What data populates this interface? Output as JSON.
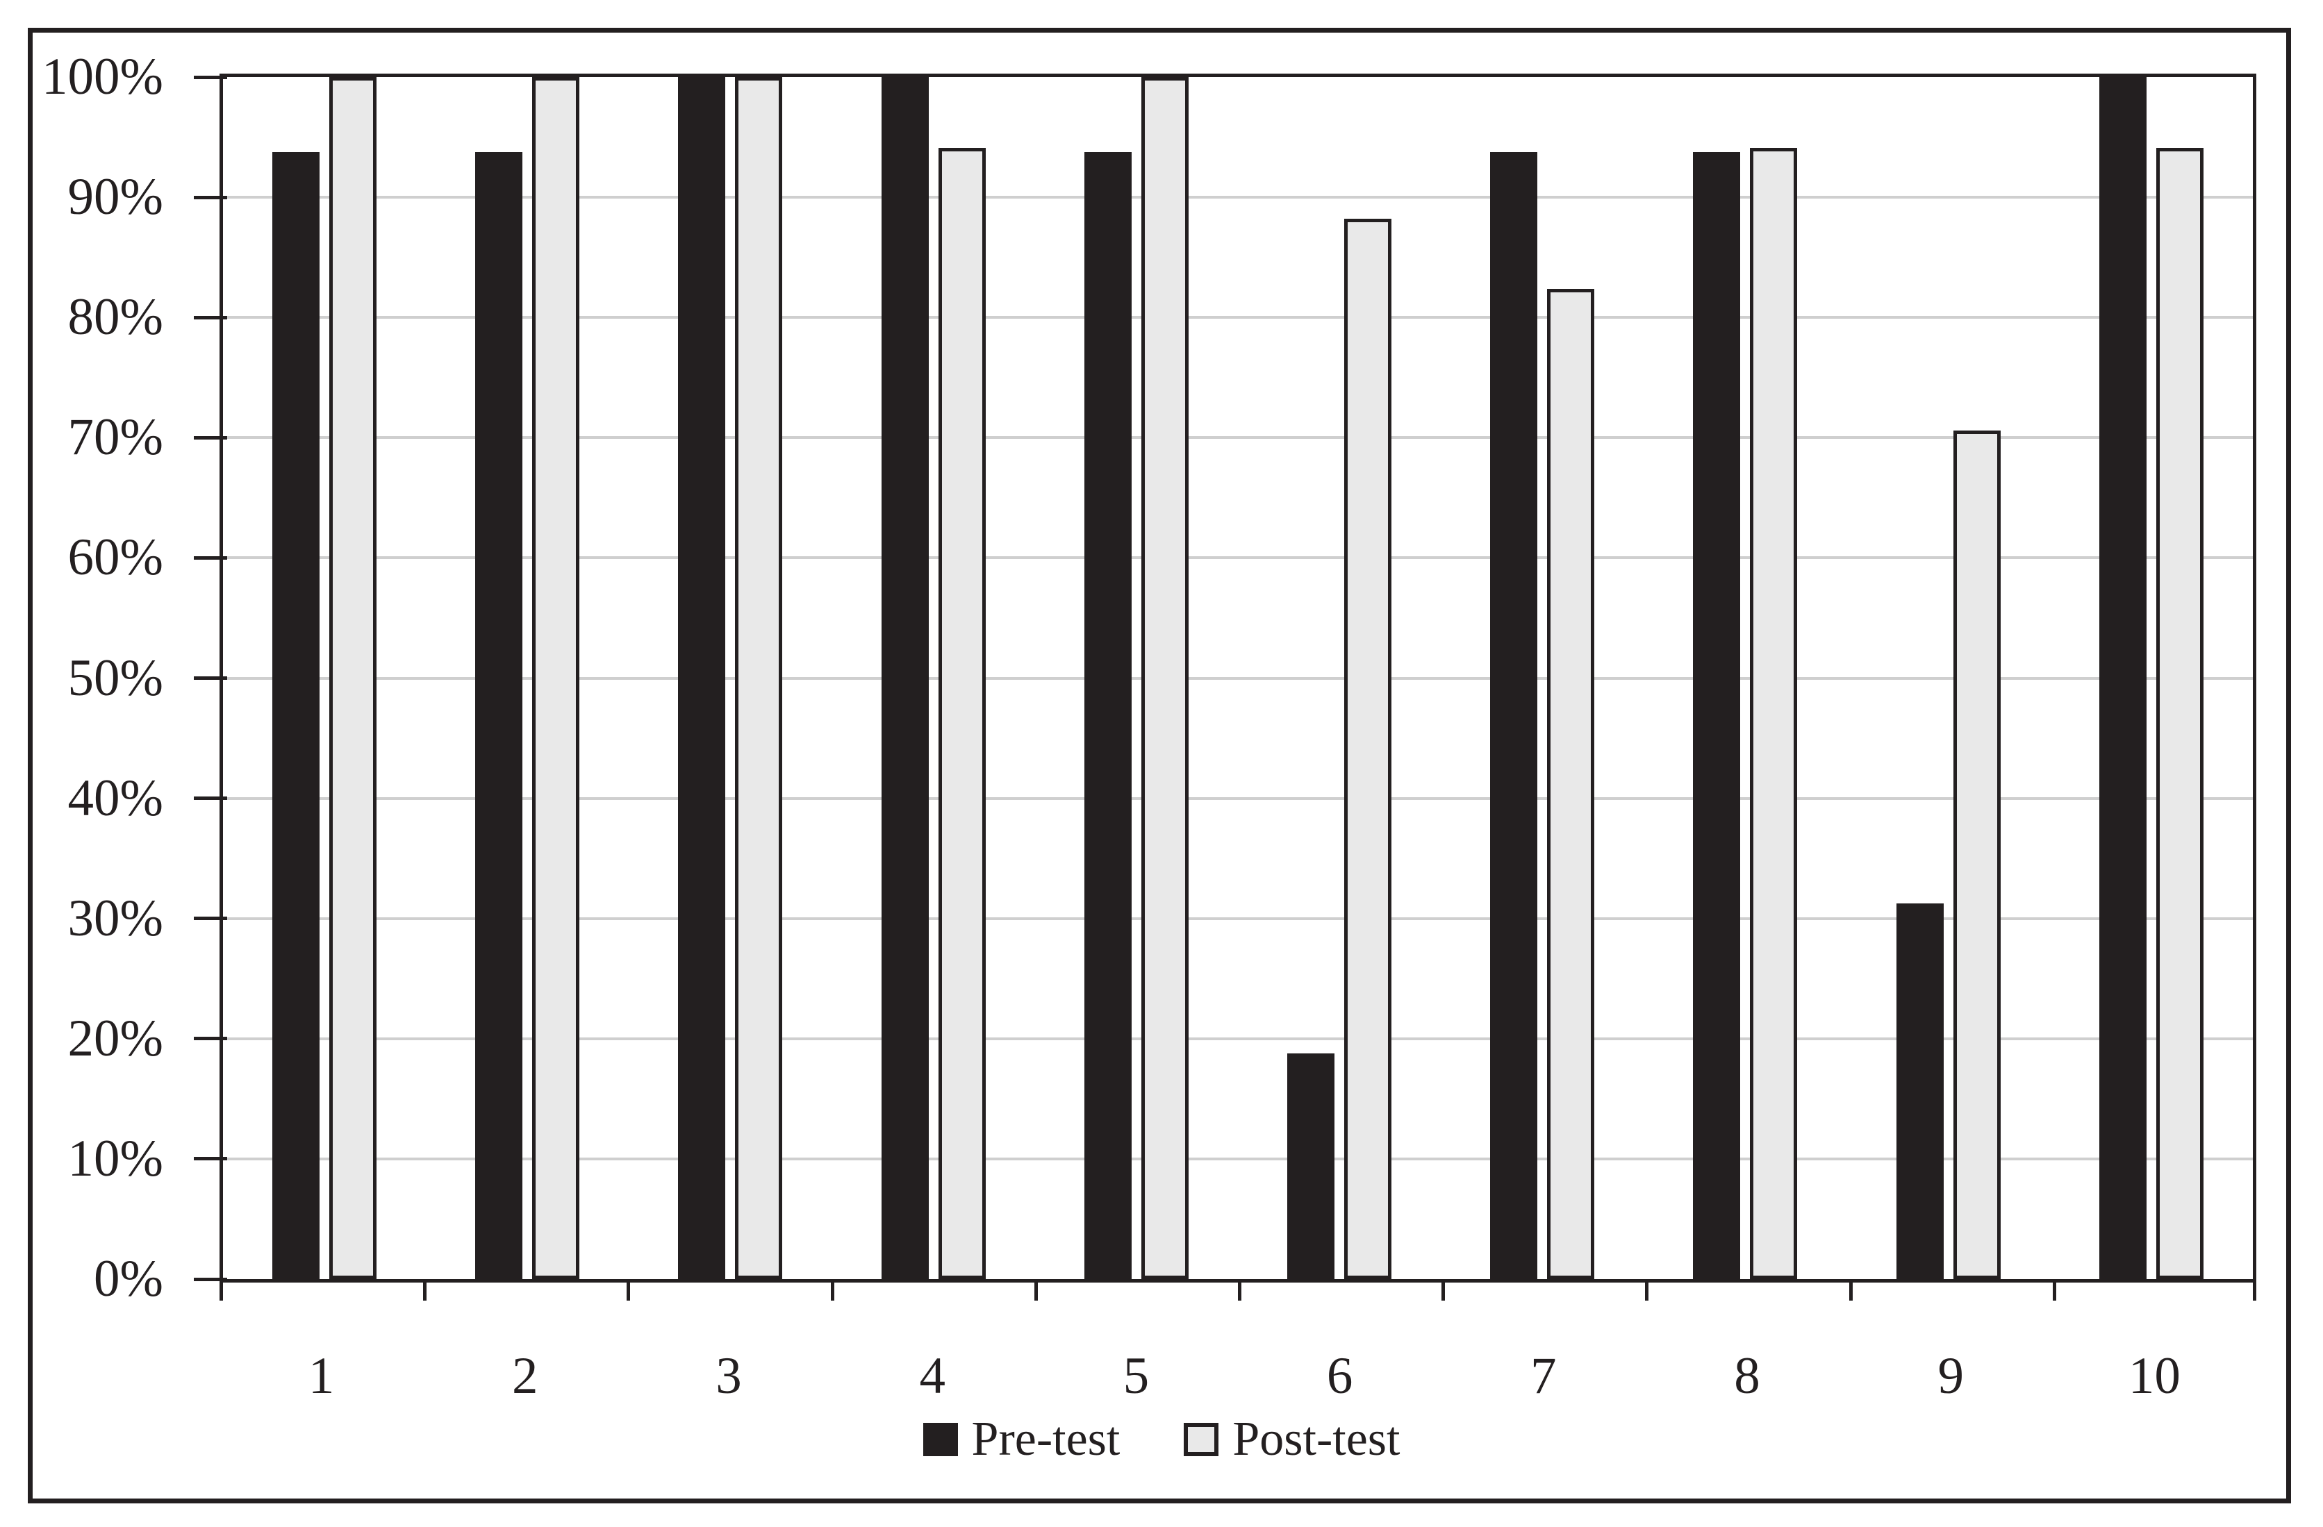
{
  "chart_data": {
    "type": "bar",
    "title": "",
    "xlabel": "",
    "ylabel": "",
    "categories": [
      "1",
      "2",
      "3",
      "4",
      "5",
      "6",
      "7",
      "8",
      "9",
      "10"
    ],
    "series": [
      {
        "name": "Pre-test",
        "color": "#231f20",
        "values": [
          93.75,
          93.75,
          100,
          100,
          93.75,
          18.75,
          93.75,
          93.75,
          31.25,
          100
        ]
      },
      {
        "name": "Post-test",
        "color": "#e9e9e9",
        "border_color": "#231f20",
        "values": [
          100,
          100,
          100,
          94.1,
          100,
          88.2,
          82.4,
          94.1,
          70.6,
          94.1
        ]
      }
    ],
    "ylim": [
      0,
      100
    ],
    "yticks": [
      "0%",
      "10%",
      "20%",
      "30%",
      "40%",
      "50%",
      "60%",
      "70%",
      "80%",
      "90%",
      "100%"
    ],
    "grid": "horizontal",
    "gridline_color": "#cfcfcf",
    "legend_position": "bottom"
  },
  "legend": {
    "pre_label": "Pre-test",
    "post_label": "Post-test"
  },
  "colors": {
    "pre_test": "#231f20",
    "post_test_fill": "#e9e9e9",
    "post_test_border": "#231f20",
    "axis": "#231f20",
    "gridline": "#cfcfcf",
    "background": "#ffffff"
  }
}
